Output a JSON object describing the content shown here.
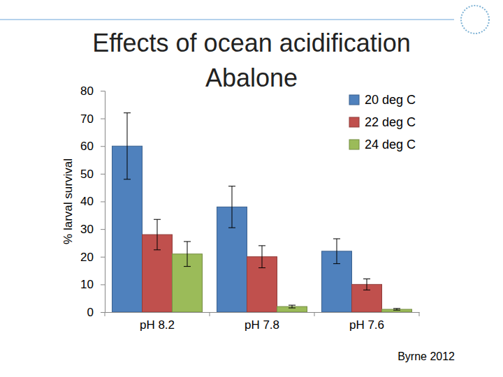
{
  "chart_data": {
    "type": "bar",
    "title": "Effects of ocean acidification\nAbalone",
    "y_label": "% larval survival",
    "categories": [
      "pH 8.2",
      "pH 7.8",
      "pH 7.6"
    ],
    "series": [
      {
        "name": "20 deg C",
        "color": "#4f81bd",
        "values": [
          60,
          38,
          22
        ],
        "errors": [
          12,
          7.5,
          4.5
        ]
      },
      {
        "name": "22 deg C",
        "color": "#c0504d",
        "values": [
          28,
          20,
          10
        ],
        "errors": [
          5.5,
          4,
          2
        ]
      },
      {
        "name": "24 deg C",
        "color": "#9bbb59",
        "values": [
          21,
          2,
          1
        ],
        "errors": [
          4.5,
          0.5,
          0.3
        ]
      }
    ],
    "ylim": [
      0,
      80
    ],
    "yticks": [
      0,
      10,
      20,
      30,
      40,
      50,
      60,
      70,
      80
    ],
    "grid": false,
    "legend": "top-right",
    "annotations": [
      "Byrne 2012"
    ]
  }
}
